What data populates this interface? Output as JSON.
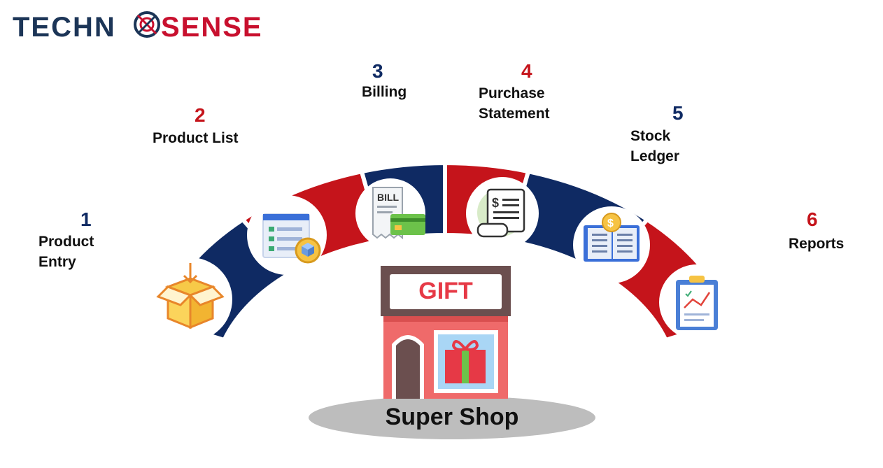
{
  "brand": {
    "techno": "TECHN",
    "sense": "SENSE",
    "color_dark": "#1c3557",
    "color_red": "#c8102e"
  },
  "colors": {
    "navy": "#0f2a63",
    "red": "#c5141b",
    "number_navy": "#0f2a63",
    "number_red": "#c5141b"
  },
  "center": {
    "title": "Super Shop",
    "sign": "GIFT"
  },
  "steps": [
    {
      "number": "1",
      "line1": "Product",
      "line2": "Entry",
      "icon": "open-box-icon"
    },
    {
      "number": "2",
      "line1": "Product List",
      "line2": "",
      "icon": "checklist-icon"
    },
    {
      "number": "3",
      "line1": "Billing",
      "line2": "",
      "icon": "bill-card-icon",
      "icon_text": "BILL"
    },
    {
      "number": "4",
      "line1": "Purchase",
      "line2": "Statement",
      "icon": "receipt-scroll-icon",
      "icon_text": "$"
    },
    {
      "number": "5",
      "line1": "Stock",
      "line2": "Ledger",
      "icon": "ledger-book-icon",
      "icon_text": "$"
    },
    {
      "number": "6",
      "line1": "Reports",
      "line2": "",
      "icon": "clipboard-report-icon"
    }
  ]
}
